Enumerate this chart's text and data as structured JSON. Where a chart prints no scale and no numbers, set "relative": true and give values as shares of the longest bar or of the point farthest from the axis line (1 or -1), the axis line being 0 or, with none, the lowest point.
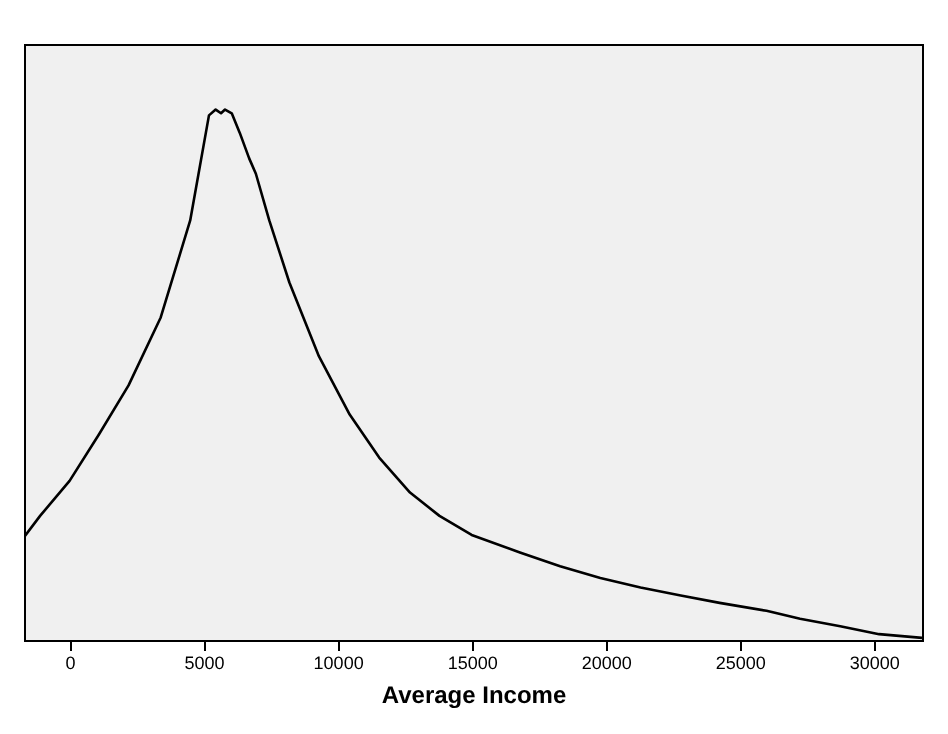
{
  "chart_data": {
    "type": "line",
    "xlabel": "Average Income",
    "relative": true,
    "xlim": [
      -1700,
      31800
    ],
    "xticks": [
      0,
      5000,
      10000,
      15000,
      20000,
      25000,
      30000
    ],
    "grid": false,
    "marker": "none",
    "line_style": "solid",
    "series": [
      {
        "color": "#000000",
        "x": [
          -1700,
          -1100,
          0,
          1100,
          2200,
          3400,
          4500,
          5200,
          5450,
          5650,
          5800,
          6050,
          6350,
          6700,
          6950,
          7450,
          8200,
          9300,
          10450,
          11550,
          12700,
          13800,
          15000,
          16800,
          18300,
          19800,
          21300,
          22800,
          24250,
          26000,
          27250,
          28750,
          30200,
          31800
        ],
        "values": [
          0.194,
          0.234,
          0.3,
          0.388,
          0.48,
          0.608,
          0.791,
          0.989,
          1,
          0.993,
          1,
          0.993,
          0.956,
          0.908,
          0.879,
          0.791,
          0.674,
          0.535,
          0.425,
          0.344,
          0.278,
          0.234,
          0.198,
          0.165,
          0.139,
          0.117,
          0.099,
          0.084,
          0.07,
          0.055,
          0.04,
          0.026,
          0.011,
          0.004
        ]
      }
    ]
  }
}
